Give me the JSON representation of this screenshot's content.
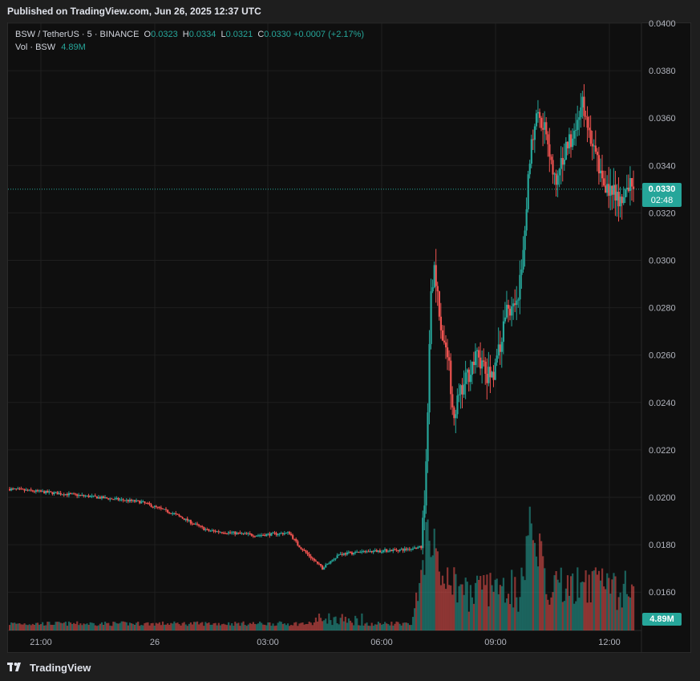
{
  "header": {
    "published": "Published on TradingView.com, Jun 26, 2025 12:37 UTC"
  },
  "legend": {
    "symbol": "BSW / TetherUS · 5 · BINANCE",
    "o_label": "O",
    "o": "0.0323",
    "h_label": "H",
    "h": "0.0334",
    "l_label": "L",
    "l": "0.0321",
    "c_label": "C",
    "c": "0.0330",
    "change": "+0.0007 (+2.17%)",
    "vol_label": "Vol · BSW",
    "vol": "4.89M"
  },
  "price_tag": {
    "price": "0.0330",
    "countdown": "02:48"
  },
  "volume_tag": "4.89M",
  "footer": {
    "brand": "TradingView"
  },
  "colors": {
    "up": "#26a69a",
    "down": "#ef5350",
    "background": "#0f0f0f"
  },
  "chart_data": {
    "type": "candlestick",
    "y_axis": {
      "ticks": [
        "0.0400",
        "0.0380",
        "0.0360",
        "0.0340",
        "0.0320",
        "0.0300",
        "0.0280",
        "0.0260",
        "0.0240",
        "0.0220",
        "0.0200",
        "0.0180",
        "0.0160"
      ],
      "min": 0.0149,
      "max": 0.04
    },
    "x_axis": {
      "ticks": [
        "21:00",
        "26",
        "03:00",
        "06:00",
        "09:00",
        "12:00"
      ]
    },
    "grid": true,
    "last_price": 0.033,
    "price_anchors": [
      {
        "t": 0,
        "p": 0.02035
      },
      {
        "t": 40,
        "p": 0.0201
      },
      {
        "t": 80,
        "p": 0.0198
      },
      {
        "t": 100,
        "p": 0.0193
      },
      {
        "t": 120,
        "p": 0.0186
      },
      {
        "t": 150,
        "p": 0.0184
      },
      {
        "t": 170,
        "p": 0.0185
      },
      {
        "t": 175,
        "p": 0.018
      },
      {
        "t": 190,
        "p": 0.017
      },
      {
        "t": 200,
        "p": 0.0176
      },
      {
        "t": 215,
        "p": 0.0177
      },
      {
        "t": 240,
        "p": 0.0178
      },
      {
        "t": 250,
        "p": 0.0179
      },
      {
        "t": 252,
        "p": 0.0198
      },
      {
        "t": 254,
        "p": 0.0235
      },
      {
        "t": 256,
        "p": 0.029
      },
      {
        "t": 258,
        "p": 0.0295
      },
      {
        "t": 262,
        "p": 0.027
      },
      {
        "t": 266,
        "p": 0.026
      },
      {
        "t": 270,
        "p": 0.0236
      },
      {
        "t": 274,
        "p": 0.0243
      },
      {
        "t": 280,
        "p": 0.0255
      },
      {
        "t": 285,
        "p": 0.026
      },
      {
        "t": 290,
        "p": 0.025
      },
      {
        "t": 296,
        "p": 0.0256
      },
      {
        "t": 302,
        "p": 0.028
      },
      {
        "t": 308,
        "p": 0.0279
      },
      {
        "t": 312,
        "p": 0.03
      },
      {
        "t": 316,
        "p": 0.0345
      },
      {
        "t": 320,
        "p": 0.0365
      },
      {
        "t": 326,
        "p": 0.0355
      },
      {
        "t": 332,
        "p": 0.033
      },
      {
        "t": 338,
        "p": 0.0348
      },
      {
        "t": 344,
        "p": 0.0355
      },
      {
        "t": 348,
        "p": 0.0368
      },
      {
        "t": 352,
        "p": 0.0352
      },
      {
        "t": 356,
        "p": 0.0345
      },
      {
        "t": 360,
        "p": 0.0335
      },
      {
        "t": 366,
        "p": 0.0328
      },
      {
        "t": 372,
        "p": 0.0325
      },
      {
        "t": 378,
        "p": 0.0333
      }
    ],
    "volume_peaks": [
      {
        "t": 250,
        "v": 0.4
      },
      {
        "t": 254,
        "v": 0.85
      },
      {
        "t": 258,
        "v": 0.7
      },
      {
        "t": 266,
        "v": 0.45
      },
      {
        "t": 300,
        "v": 0.35
      },
      {
        "t": 316,
        "v": 0.95
      },
      {
        "t": 322,
        "v": 0.7
      },
      {
        "t": 332,
        "v": 0.45
      },
      {
        "t": 348,
        "v": 0.4
      },
      {
        "t": 362,
        "v": 0.35
      },
      {
        "t": 376,
        "v": 0.25
      }
    ]
  }
}
